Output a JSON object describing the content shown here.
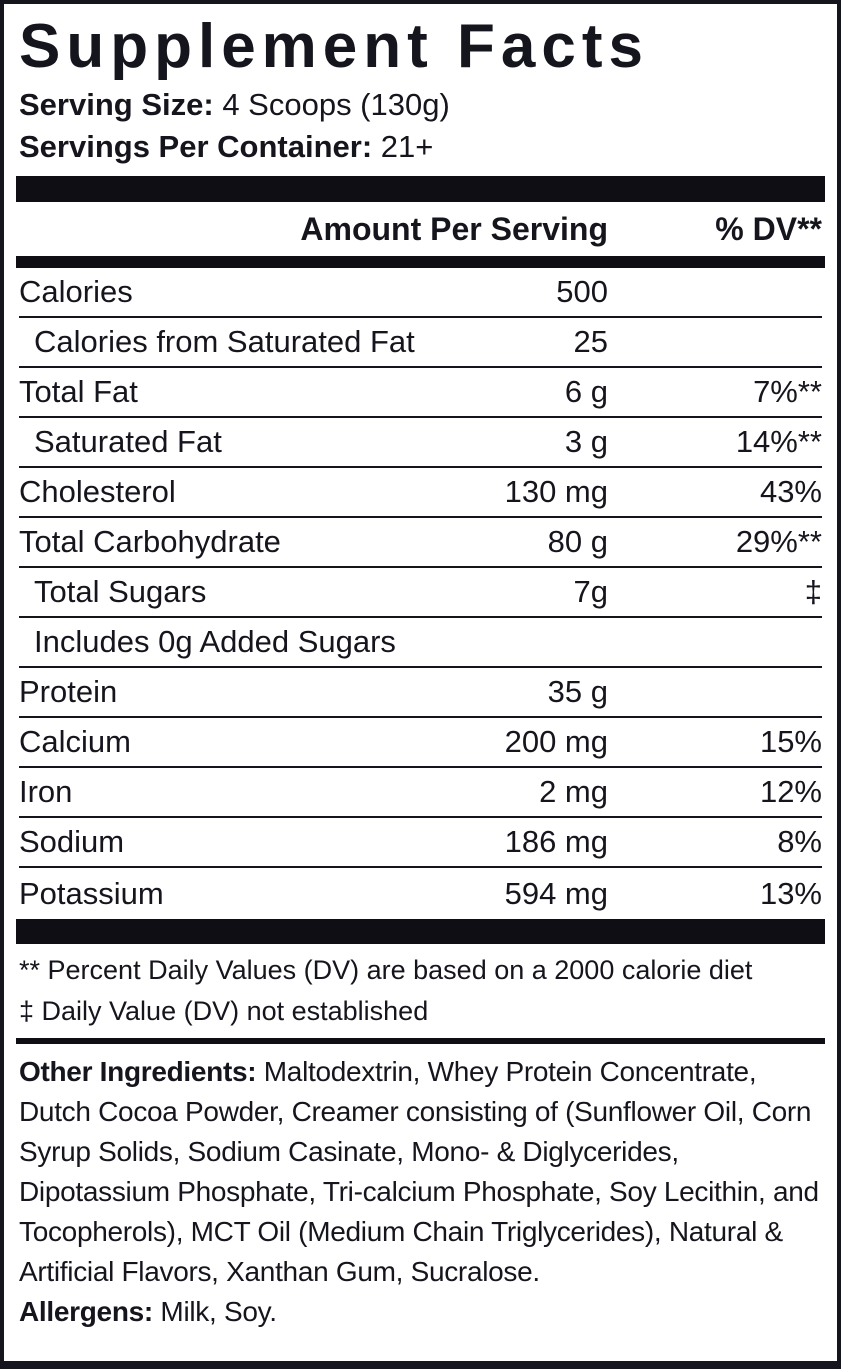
{
  "label": {
    "title": "Supplement Facts",
    "serving": {
      "size_label": "Serving Size:",
      "size_value": "4 Scoops (130g)",
      "per_container_label": "Servings Per Container:",
      "per_container_value": "21+"
    },
    "table_header": {
      "amount_col": "Amount Per Serving",
      "dv_col": "% DV**"
    },
    "rows": [
      {
        "name": "Calories",
        "amount": "500",
        "dv": "",
        "indent": false
      },
      {
        "name": "Calories from Saturated Fat",
        "amount": "25",
        "dv": "",
        "indent": true
      },
      {
        "name": "Total Fat",
        "amount": "6 g",
        "dv": "7%**",
        "indent": false
      },
      {
        "name": "Saturated Fat",
        "amount": "3 g",
        "dv": "14%**",
        "indent": true
      },
      {
        "name": "Cholesterol",
        "amount": "130 mg",
        "dv": "43%",
        "indent": false
      },
      {
        "name": "Total Carbohydrate",
        "amount": "80 g",
        "dv": "29%**",
        "indent": false
      },
      {
        "name": "Total Sugars",
        "amount": "7g",
        "dv": "‡",
        "indent": true
      },
      {
        "name": "Includes 0g Added Sugars",
        "amount": "",
        "dv": "",
        "indent": true
      },
      {
        "name": "Protein",
        "amount": "35 g",
        "dv": "",
        "indent": false
      },
      {
        "name": "Calcium",
        "amount": "200 mg",
        "dv": "15%",
        "indent": false
      },
      {
        "name": "Iron",
        "amount": "2 mg",
        "dv": "12%",
        "indent": false
      },
      {
        "name": "Sodium",
        "amount": "186 mg",
        "dv": "8%",
        "indent": false
      },
      {
        "name": "Potassium",
        "amount": "594 mg",
        "dv": "13%",
        "indent": false
      }
    ],
    "footnotes": {
      "dv_note": "** Percent Daily Values (DV) are based on a 2000 calorie diet",
      "dagger_note": "‡ Daily Value (DV) not established"
    },
    "other_ingredients": {
      "label": "Other Ingredients:",
      "text": " Maltodextrin, Whey Protein Concentrate, Dutch Cocoa Powder, Creamer consisting of (Sunflower Oil, Corn Syrup Solids, Sodium Casinate, Mono- & Diglycerides, Dipotassium Phosphate, Tri-calcium Phosphate, Soy Lecithin, and Tocopherols), MCT Oil (Medium Chain Triglycerides), Natural & Artificial Flavors, Xanthan Gum, Sucralose."
    },
    "allergens": {
      "label": "Allergens:",
      "text": " Milk, Soy."
    },
    "colors": {
      "ink": "#15151d",
      "bar": "#0e0e14",
      "background": "#ffffff"
    }
  }
}
